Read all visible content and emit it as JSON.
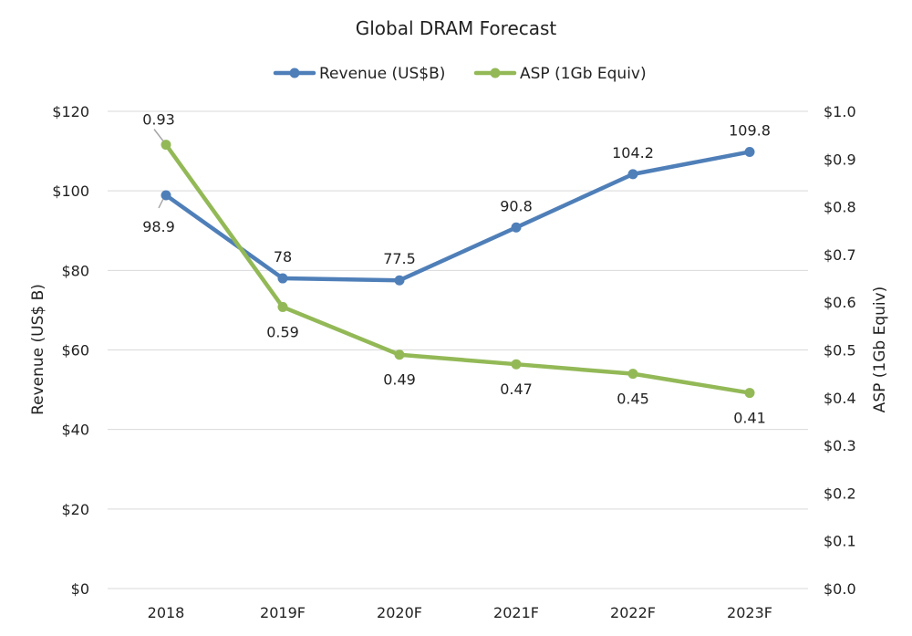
{
  "chart_data": {
    "type": "line",
    "title": "Global DRAM Forecast",
    "categories": [
      "2018",
      "2019F",
      "2020F",
      "2021F",
      "2022F",
      "2023F"
    ],
    "series": [
      {
        "name": "Revenue (US$B)",
        "axis": "left",
        "color": "#4f7fb8",
        "values": [
          98.9,
          78,
          77.5,
          90.8,
          104.2,
          109.8
        ],
        "labels": [
          "98.9",
          "78",
          "77.5",
          "90.8",
          "104.2",
          "109.8"
        ]
      },
      {
        "name": "ASP (1Gb Equiv)",
        "axis": "right",
        "color": "#93b957",
        "values": [
          0.93,
          0.59,
          0.49,
          0.47,
          0.45,
          0.41
        ],
        "labels": [
          "0.93",
          "0.59",
          "0.49",
          "0.47",
          "0.45",
          "0.41"
        ]
      }
    ],
    "y_left": {
      "label": "Revenue (US$ B)",
      "range": [
        0,
        120
      ],
      "ticks": [
        0,
        20,
        40,
        60,
        80,
        100,
        120
      ],
      "tick_labels": [
        "$0",
        "$20",
        "$40",
        "$60",
        "$80",
        "$100",
        "$120"
      ]
    },
    "y_right": {
      "label": "ASP (1Gb Equiv)",
      "range": [
        0,
        1.0
      ],
      "ticks": [
        0,
        0.1,
        0.2,
        0.3,
        0.4,
        0.5,
        0.6,
        0.7,
        0.8,
        0.9,
        1.0
      ],
      "tick_labels": [
        "$0.0",
        "$0.1",
        "$0.2",
        "$0.3",
        "$0.4",
        "$0.5",
        "$0.6",
        "$0.7",
        "$0.8",
        "$0.9",
        "$1.0"
      ]
    },
    "grid": true,
    "legend_position": "top"
  }
}
